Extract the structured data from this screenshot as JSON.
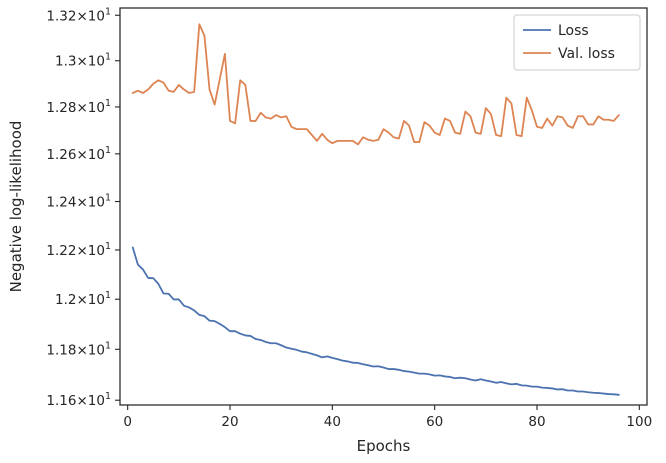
{
  "chart_data": {
    "type": "line",
    "title": "",
    "xlabel": "Epochs",
    "ylabel": "Negative log-likelihood",
    "xlim": [
      -1.5,
      101.5
    ],
    "ylim": [
      11.5814,
      13.2322
    ],
    "scale_note": "y-axis log scale",
    "xticks": [
      0,
      20,
      40,
      60,
      80,
      100
    ],
    "xtick_labels": [
      "0",
      "20",
      "40",
      "60",
      "80",
      "100"
    ],
    "yticks": [
      11.6,
      11.8,
      12.0,
      12.2,
      12.4,
      12.6,
      12.8,
      13.0,
      13.2
    ],
    "ytick_labels": [
      {
        "mant": "1.16",
        "exp": "1"
      },
      {
        "mant": "1.18",
        "exp": "1"
      },
      {
        "mant": "1.2",
        "exp": "1"
      },
      {
        "mant": "1.22",
        "exp": "1"
      },
      {
        "mant": "1.24",
        "exp": "1"
      },
      {
        "mant": "1.26",
        "exp": "1"
      },
      {
        "mant": "1.28",
        "exp": "1"
      },
      {
        "mant": "1.3",
        "exp": "1"
      },
      {
        "mant": "1.32",
        "exp": "1"
      }
    ],
    "grid": false,
    "legend_position": "top-right",
    "series": [
      {
        "name": "Loss",
        "color": "#4c72b0",
        "x": [
          1,
          2,
          3,
          4,
          5,
          6,
          7,
          8,
          9,
          10,
          11,
          12,
          13,
          14,
          15,
          16,
          17,
          18,
          19,
          20,
          21,
          22,
          23,
          24,
          25,
          26,
          27,
          28,
          29,
          30,
          31,
          32,
          33,
          34,
          35,
          36,
          37,
          38,
          39,
          40,
          41,
          42,
          43,
          44,
          45,
          46,
          47,
          48,
          49,
          50,
          51,
          52,
          53,
          54,
          55,
          56,
          57,
          58,
          59,
          60,
          61,
          62,
          63,
          64,
          65,
          66,
          67,
          68,
          69,
          70,
          71,
          72,
          73,
          74,
          75,
          76,
          77,
          78,
          79,
          80,
          81,
          82,
          83,
          84,
          85,
          86,
          87,
          88,
          89,
          90,
          91,
          92,
          93,
          94,
          95,
          96
        ],
        "values": [
          12.21,
          12.14,
          12.12,
          12.086,
          12.085,
          12.062,
          12.023,
          12.022,
          11.999,
          11.999,
          11.974,
          11.967,
          11.955,
          11.937,
          11.932,
          11.914,
          11.912,
          11.901,
          11.888,
          11.872,
          11.872,
          11.862,
          11.855,
          11.853,
          11.841,
          11.837,
          11.829,
          11.824,
          11.824,
          11.816,
          11.807,
          11.802,
          11.798,
          11.791,
          11.788,
          11.782,
          11.776,
          11.768,
          11.772,
          11.766,
          11.761,
          11.755,
          11.752,
          11.747,
          11.746,
          11.741,
          11.737,
          11.732,
          11.733,
          11.728,
          11.722,
          11.722,
          11.719,
          11.714,
          11.712,
          11.708,
          11.704,
          11.704,
          11.701,
          11.696,
          11.697,
          11.693,
          11.691,
          11.686,
          11.688,
          11.686,
          11.681,
          11.677,
          11.682,
          11.677,
          11.673,
          11.668,
          11.671,
          11.666,
          11.662,
          11.664,
          11.658,
          11.657,
          11.653,
          11.653,
          11.649,
          11.648,
          11.646,
          11.642,
          11.643,
          11.638,
          11.638,
          11.634,
          11.634,
          11.631,
          11.629,
          11.628,
          11.626,
          11.624,
          11.623,
          11.621
        ]
      },
      {
        "name": "Val. loss",
        "color": "#dd8452",
        "x": [
          1,
          2,
          3,
          4,
          5,
          6,
          7,
          8,
          9,
          10,
          11,
          12,
          13,
          14,
          15,
          16,
          17,
          18,
          19,
          20,
          21,
          22,
          23,
          24,
          25,
          26,
          27,
          28,
          29,
          30,
          31,
          32,
          33,
          34,
          35,
          36,
          37,
          38,
          39,
          40,
          41,
          42,
          43,
          44,
          45,
          46,
          47,
          48,
          49,
          50,
          51,
          52,
          53,
          54,
          55,
          56,
          57,
          58,
          59,
          60,
          61,
          62,
          63,
          64,
          65,
          66,
          67,
          68,
          69,
          70,
          71,
          72,
          73,
          74,
          75,
          76,
          77,
          78,
          79,
          80,
          81,
          82,
          83,
          84,
          85,
          86,
          87,
          88,
          89,
          90,
          91,
          92,
          93,
          94,
          95,
          96
        ],
        "values": [
          12.86,
          12.87,
          12.86,
          12.875,
          12.9,
          12.915,
          12.905,
          12.87,
          12.865,
          12.895,
          12.875,
          12.86,
          12.865,
          13.16,
          13.11,
          12.875,
          12.81,
          12.92,
          13.03,
          12.74,
          12.73,
          12.915,
          12.895,
          12.74,
          12.74,
          12.775,
          12.755,
          12.75,
          12.765,
          12.755,
          12.76,
          12.715,
          12.705,
          12.705,
          12.705,
          12.68,
          12.655,
          12.685,
          12.66,
          12.645,
          12.655,
          12.655,
          12.655,
          12.655,
          12.64,
          12.67,
          12.66,
          12.655,
          12.66,
          12.705,
          12.69,
          12.67,
          12.665,
          12.74,
          12.72,
          12.65,
          12.65,
          12.735,
          12.72,
          12.69,
          12.68,
          12.75,
          12.74,
          12.69,
          12.685,
          12.78,
          12.76,
          12.69,
          12.685,
          12.795,
          12.77,
          12.68,
          12.675,
          12.84,
          12.815,
          12.68,
          12.675,
          12.84,
          12.785,
          12.715,
          12.71,
          12.75,
          12.72,
          12.76,
          12.755,
          12.72,
          12.71,
          12.76,
          12.76,
          12.725,
          12.725,
          12.76,
          12.745,
          12.745,
          12.74,
          12.765
        ]
      }
    ]
  }
}
